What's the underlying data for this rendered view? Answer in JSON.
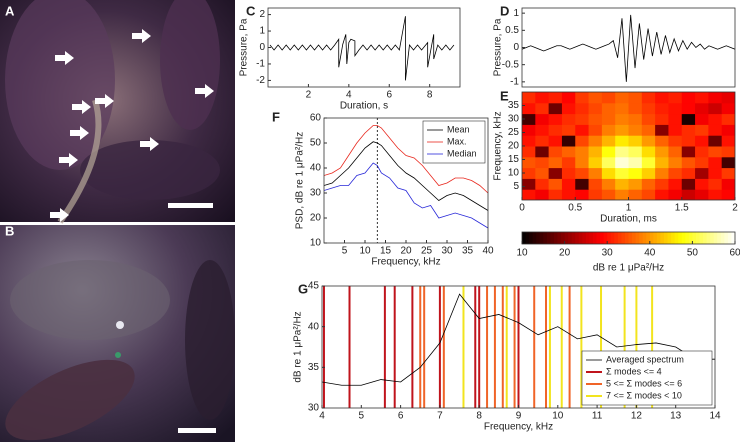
{
  "figure": {
    "photos": [
      {
        "label": "A"
      },
      {
        "label": "B"
      }
    ]
  },
  "chart_data": [
    {
      "type": "line",
      "label": "C",
      "xlabel": "Duration, s",
      "ylabel": "Pressure, Pa",
      "xlim": [
        0,
        9.5
      ],
      "ylim": [
        -2.4,
        2.4
      ],
      "xticks": [
        2,
        4,
        6,
        8
      ],
      "yticks": [
        -2,
        -1,
        0,
        1,
        2
      ],
      "x": [
        0.1,
        0.3,
        0.5,
        0.7,
        0.9,
        1.1,
        1.3,
        1.5,
        1.7,
        1.9,
        2.1,
        2.3,
        2.5,
        2.7,
        2.9,
        3.1,
        3.3,
        3.5,
        3.5,
        3.7,
        3.85,
        3.9,
        4.0,
        4.1,
        4.3,
        4.3,
        4.5,
        4.7,
        4.9,
        5.1,
        5.3,
        5.5,
        5.7,
        5.9,
        6.1,
        6.3,
        6.5,
        6.8,
        6.8,
        7.0,
        7.2,
        7.4,
        7.6,
        7.9,
        7.9,
        8.1,
        8.2,
        8.2,
        8.4,
        8.6,
        8.8,
        9.0,
        9.2
      ],
      "series": [
        {
          "color": "#000000",
          "values": [
            0.15,
            -0.15,
            0.15,
            -0.15,
            0.15,
            -0.15,
            0.15,
            -0.15,
            0.15,
            -0.15,
            0.15,
            -0.15,
            0.15,
            -0.15,
            0.15,
            -0.15,
            0.15,
            0.5,
            -1.2,
            0.2,
            0.8,
            -1.0,
            0.3,
            0.5,
            0.4,
            -0.5,
            -0.15,
            0.15,
            -0.15,
            0.15,
            -0.15,
            0.15,
            -0.15,
            0.15,
            -0.15,
            0.15,
            -0.15,
            1.9,
            -2.0,
            0.15,
            -0.15,
            0.15,
            -0.15,
            0.3,
            -1.2,
            0.15,
            0.8,
            -0.7,
            0.15,
            -0.15,
            0.15,
            -0.15,
            0.15
          ]
        }
      ]
    },
    {
      "type": "line",
      "label": "D",
      "ylabel": "Pressure, Pa",
      "ylim": [
        -1.15,
        1.15
      ],
      "yticks": [
        -1,
        -0.5,
        0,
        0.5,
        1
      ],
      "series": [
        {
          "color": "#000000",
          "values": [
            -0.05,
            0,
            0.05,
            0,
            -0.05,
            -0.1,
            -0.05,
            0,
            0.05,
            0.05,
            0,
            -0.05,
            0,
            0.05,
            0.1,
            0.05,
            0,
            -0.05,
            0,
            0.05,
            0.1,
            0.2,
            -0.3,
            0.85,
            -1.0,
            0.95,
            -0.6,
            0.7,
            -0.35,
            0.55,
            -0.25,
            0.45,
            -0.2,
            0.35,
            -0.15,
            0.25,
            -0.1,
            0.2,
            -0.05,
            0.15,
            0,
            0.1,
            -0.05,
            0.05,
            0,
            -0.05,
            0,
            0.05,
            0,
            -0.05
          ]
        }
      ]
    },
    {
      "type": "heatmap",
      "label": "E",
      "xlabel": "Duration, ms",
      "ylabel": "Frequency, kHz",
      "xlim": [
        0,
        2
      ],
      "ylim": [
        0,
        40
      ],
      "xticks": [
        0,
        0.5,
        1,
        1.5,
        2
      ],
      "yticks": [
        5,
        10,
        15,
        20,
        25,
        30,
        35
      ],
      "z": [
        [
          30,
          28,
          32,
          30,
          29,
          33,
          35,
          38,
          36,
          34,
          30,
          28,
          25,
          27,
          30,
          29
        ],
        [
          20,
          32,
          35,
          30,
          15,
          34,
          38,
          42,
          40,
          36,
          33,
          30,
          18,
          30,
          32,
          28
        ],
        [
          33,
          35,
          20,
          32,
          34,
          38,
          45,
          50,
          48,
          44,
          38,
          34,
          32,
          22,
          30,
          33
        ],
        [
          35,
          34,
          36,
          33,
          38,
          44,
          52,
          58,
          56,
          50,
          42,
          38,
          35,
          33,
          30,
          15
        ],
        [
          32,
          18,
          34,
          36,
          38,
          42,
          48,
          54,
          52,
          45,
          40,
          36,
          20,
          32,
          34,
          33
        ],
        [
          30,
          32,
          30,
          14,
          34,
          38,
          42,
          46,
          44,
          40,
          36,
          33,
          32,
          30,
          18,
          30
        ],
        [
          28,
          30,
          32,
          33,
          30,
          34,
          38,
          40,
          38,
          36,
          20,
          30,
          32,
          33,
          30,
          28
        ],
        [
          15,
          28,
          30,
          32,
          33,
          35,
          36,
          38,
          37,
          34,
          32,
          30,
          12,
          28,
          30,
          32
        ],
        [
          30,
          32,
          18,
          30,
          32,
          34,
          36,
          37,
          35,
          33,
          31,
          30,
          29,
          27,
          25,
          28
        ],
        [
          32,
          30,
          31,
          29,
          33,
          35,
          34,
          36,
          35,
          32,
          30,
          31,
          29,
          30,
          28,
          27
        ]
      ],
      "colorbar": {
        "label": "dB re 1 μPa²/Hz",
        "lim": [
          10,
          60
        ],
        "ticks": [
          10,
          20,
          30,
          40,
          50,
          60
        ]
      }
    },
    {
      "type": "line",
      "label": "F",
      "xlabel": "Frequency, kHz",
      "ylabel": "PSD, dB re 1 μPa²/Hz",
      "xlim": [
        0,
        40
      ],
      "ylim": [
        10,
        60
      ],
      "xticks": [
        5,
        10,
        15,
        20,
        25,
        30,
        35,
        40
      ],
      "yticks": [
        10,
        20,
        30,
        40,
        50,
        60
      ],
      "marker_x": 13,
      "legend": "upper right",
      "x": [
        0,
        2,
        4,
        6,
        8,
        10,
        12,
        13,
        14,
        16,
        18,
        20,
        22,
        24,
        26,
        28,
        30,
        32,
        34,
        36,
        38,
        40
      ],
      "series": [
        {
          "name": "Mean",
          "color": "#000000",
          "values": [
            33,
            34,
            37,
            40,
            44,
            48,
            50.5,
            50,
            49,
            45,
            41,
            38,
            36,
            33,
            30,
            27,
            29,
            30,
            29,
            27,
            25,
            23
          ]
        },
        {
          "name": "Max.",
          "color": "#e8281e",
          "values": [
            37,
            38,
            40,
            45,
            50,
            54,
            57,
            57,
            56,
            52,
            48,
            45,
            44,
            41,
            37,
            33,
            34,
            36,
            36,
            35,
            33,
            30
          ]
        },
        {
          "name": "Median",
          "color": "#2828d8",
          "values": [
            31,
            32,
            33,
            33,
            37,
            38,
            42,
            41,
            38,
            36,
            32,
            31,
            26,
            24,
            25,
            20,
            21,
            22,
            21,
            20,
            18,
            16
          ]
        }
      ]
    },
    {
      "type": "line",
      "label": "G",
      "xlabel": "Frequency, kHz",
      "ylabel": "dB re 1 μPa²/Hz",
      "xlim": [
        4,
        14
      ],
      "ylim": [
        30,
        45
      ],
      "xticks": [
        4,
        5,
        6,
        7,
        8,
        9,
        10,
        11,
        12,
        13,
        14
      ],
      "yticks": [
        30,
        35,
        40,
        45
      ],
      "legend": "lower right",
      "x": [
        4,
        4.5,
        5,
        5.5,
        6,
        6.5,
        7,
        7.5,
        8,
        8.5,
        9,
        9.5,
        10,
        10.5,
        11,
        11.5,
        12,
        12.5,
        13,
        13.5,
        14
      ],
      "series": [
        {
          "name": "Averaged spectrum",
          "color": "#000000",
          "values": [
            33.2,
            32.8,
            32.8,
            33.5,
            33.2,
            35,
            38,
            44,
            41,
            41.5,
            40.5,
            39,
            40,
            38.5,
            39,
            37.5,
            37.8,
            38,
            37.5,
            36,
            36
          ]
        }
      ],
      "vline_groups": [
        {
          "name": "Σ modes <= 4",
          "color": "#c0141c",
          "x": [
            4.05,
            4.7,
            5.6,
            5.85,
            6.3,
            7.0,
            7.9,
            8.0,
            9.0
          ]
        },
        {
          "name": "5 <= Σ modes <= 6",
          "color": "#f06428",
          "x": [
            6.5,
            6.6,
            7.1,
            8.2,
            8.4,
            8.6,
            8.9,
            9.4,
            9.7,
            10.3
          ]
        },
        {
          "name": "7 <= Σ modes < 10",
          "color": "#f2e41e",
          "x": [
            7.6,
            8.7,
            9.8,
            10.1,
            10.6,
            11.1,
            11.7,
            12.0,
            12.4
          ]
        }
      ]
    }
  ]
}
